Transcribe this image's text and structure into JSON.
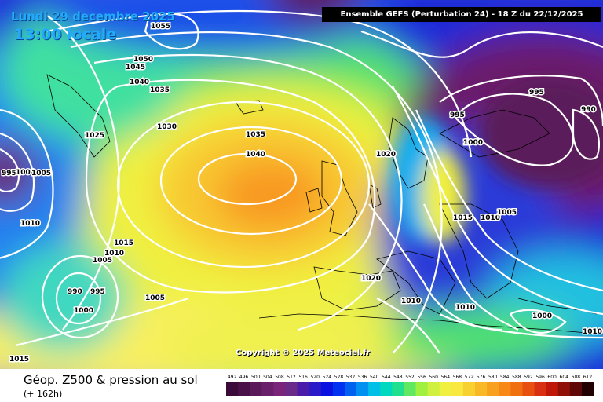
{
  "header": {
    "date_line": "Lundi 29 decembre 2025",
    "time_line": "13:00 locale",
    "run_info": "Ensemble GEFS  (Perturbation 24)  -  18 Z du 22/12/2025"
  },
  "map": {
    "copyright": "Copyright © 2025 Meteociel.fr",
    "isobar_labels": [
      "1055",
      "1050",
      "1045",
      "1040",
      "1035",
      "1030",
      "1025",
      "995",
      "1000",
      "1005",
      "1010",
      "1015",
      "1005",
      "1010",
      "990",
      "995",
      "1000",
      "1005",
      "1015",
      "1035",
      "1040",
      "1020",
      "1015",
      "1010",
      "1005",
      "995",
      "995",
      "990",
      "1000",
      "1020",
      "1010",
      "1010",
      "1000",
      "1010"
    ]
  },
  "legend": {
    "title": "Géop. Z500 & pression au sol",
    "lead_time": "(+ 162h)",
    "scale_values": [
      "492",
      "496",
      "500",
      "504",
      "508",
      "512",
      "516",
      "520",
      "524",
      "528",
      "532",
      "536",
      "540",
      "544",
      "548",
      "552",
      "556",
      "560",
      "564",
      "568",
      "572",
      "576",
      "580",
      "584",
      "588",
      "592",
      "596",
      "600",
      "604",
      "608",
      "612"
    ],
    "scale_colors": [
      "#3a0a3a",
      "#4a1048",
      "#5a1a5a",
      "#6a1f6a",
      "#7a247a",
      "#6a2a8a",
      "#4a1aa8",
      "#2a1ac8",
      "#0a10e0",
      "#0030f0",
      "#0060f0",
      "#0090f0",
      "#00c0e8",
      "#00d8c0",
      "#20e090",
      "#60e860",
      "#a0f040",
      "#d0f040",
      "#f0f040",
      "#f8e840",
      "#f8d030",
      "#f8b828",
      "#f8a020",
      "#f88818",
      "#f07010",
      "#e85010",
      "#d83010",
      "#c01808",
      "#901008",
      "#600808",
      "#200000"
    ]
  }
}
